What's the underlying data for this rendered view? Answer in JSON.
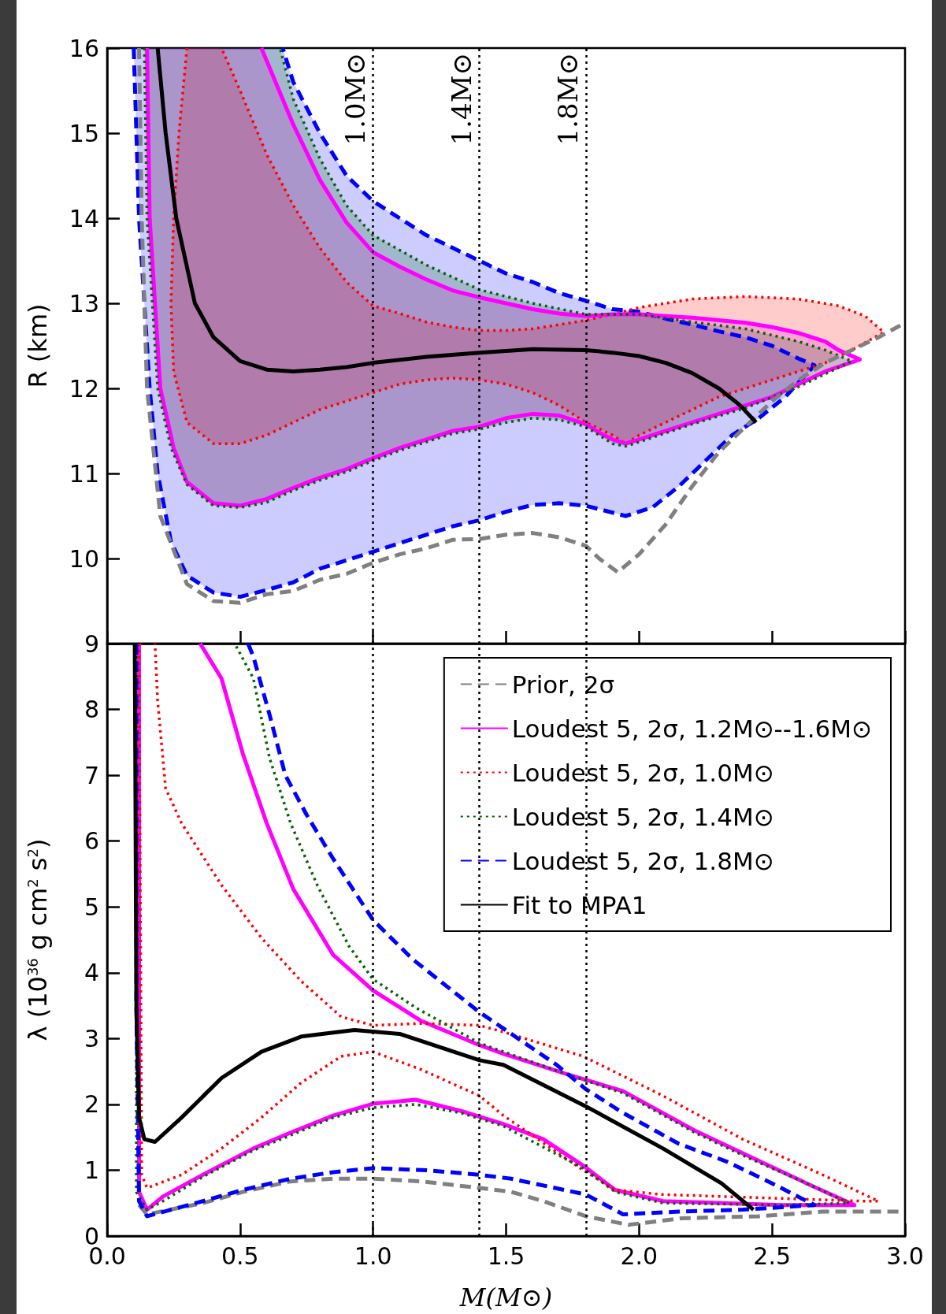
{
  "chart_data": [
    {
      "type": "line",
      "ylabel": "R (km)",
      "xlim": [
        0,
        3
      ],
      "xticks": [
        {
          "value": 0,
          "label": null
        },
        {
          "value": 0.5,
          "label": null
        },
        {
          "value": 1,
          "label": null
        },
        {
          "value": 1.5,
          "label": null
        },
        {
          "value": 2,
          "label": null
        },
        {
          "value": 2.5,
          "label": null
        },
        {
          "value": 3,
          "label": null
        }
      ],
      "ylim": [
        9,
        16
      ],
      "yticks": [
        {
          "value": 9,
          "label": null
        },
        10,
        11,
        12,
        13,
        14,
        15,
        16
      ],
      "tick_labels": "y",
      "ref_lines": [
        {
          "axis": "x",
          "value": 1.0,
          "label": "1.0M⊙",
          "color": "#000000",
          "line_style": "dotted"
        },
        {
          "axis": "x",
          "value": 1.4,
          "label": "1.4M⊙",
          "color": "#000000",
          "line_style": "dotted"
        },
        {
          "axis": "x",
          "value": 1.8,
          "label": "1.8M⊙",
          "color": "#000000",
          "line_style": "dotted"
        }
      ],
      "series": [
        {
          "type": "area",
          "color": "#0000ff",
          "line_style": "dashed",
          "x": [
            0.1,
            0.11,
            0.12,
            0.14,
            0.16,
            0.19,
            0.24,
            0.3,
            0.4,
            0.5,
            0.6,
            0.7,
            0.8,
            0.9,
            1.0,
            1.1,
            1.2,
            1.3,
            1.4,
            1.5,
            1.6,
            1.7,
            1.8,
            1.95,
            2.05,
            2.15,
            2.25,
            2.35,
            2.45,
            2.55,
            2.66,
            2.6,
            2.5,
            2.4,
            2.3,
            2.2,
            2.1,
            2.0,
            1.9,
            1.8,
            1.7,
            1.6,
            1.5,
            1.4,
            1.3,
            1.2,
            1.1,
            1.0,
            0.9,
            0.8,
            0.7,
            0.66
          ],
          "values": [
            16,
            15,
            14,
            13,
            12,
            11,
            10.2,
            9.8,
            9.6,
            9.55,
            9.63,
            9.72,
            9.88,
            9.98,
            10.08,
            10.18,
            10.28,
            10.38,
            10.45,
            10.55,
            10.63,
            10.65,
            10.62,
            10.5,
            10.6,
            10.85,
            11.15,
            11.45,
            11.65,
            11.9,
            12.27,
            12.35,
            12.5,
            12.6,
            12.67,
            12.75,
            12.82,
            12.9,
            12.93,
            13.03,
            13.12,
            13.25,
            13.35,
            13.5,
            13.65,
            13.8,
            14.0,
            14.2,
            14.5,
            15.0,
            15.6,
            16
          ]
        },
        {
          "type": "area",
          "color": "#ff0000",
          "line_style": "dotted",
          "x": [
            0.3,
            0.27,
            0.25,
            0.24,
            0.25,
            0.3,
            0.4,
            0.5,
            0.6,
            0.7,
            0.8,
            0.9,
            1.0,
            1.1,
            1.2,
            1.3,
            1.4,
            1.5,
            1.6,
            1.7,
            1.8,
            1.9,
            1.95,
            2.0,
            2.1,
            2.2,
            2.3,
            2.4,
            2.5,
            2.6,
            2.7,
            2.8,
            2.92,
            2.85,
            2.75,
            2.6,
            2.4,
            2.2,
            2.0,
            1.9,
            1.8,
            1.7,
            1.6,
            1.5,
            1.4,
            1.3,
            1.2,
            1.1,
            1.0,
            0.9,
            0.8,
            0.7,
            0.6,
            0.5,
            0.43
          ],
          "values": [
            16,
            15,
            14,
            13,
            12.2,
            11.6,
            11.35,
            11.35,
            11.45,
            11.6,
            11.75,
            11.85,
            11.95,
            12.05,
            12.1,
            12.12,
            12.1,
            12.05,
            11.95,
            11.8,
            11.6,
            11.45,
            11.35,
            11.45,
            11.6,
            11.75,
            11.9,
            12.0,
            12.1,
            12.2,
            12.3,
            12.45,
            12.66,
            12.85,
            12.97,
            13.05,
            13.08,
            13.05,
            12.95,
            12.87,
            12.8,
            12.75,
            12.7,
            12.68,
            12.68,
            12.72,
            12.78,
            12.88,
            12.97,
            13.25,
            13.65,
            14.15,
            14.75,
            15.5,
            16
          ]
        },
        {
          "type": "area",
          "color": "#ff00ff",
          "line_style": "solid",
          "x": [
            0.15,
            0.16,
            0.18,
            0.2,
            0.25,
            0.3,
            0.4,
            0.5,
            0.6,
            0.7,
            0.8,
            0.9,
            1.0,
            1.1,
            1.2,
            1.3,
            1.4,
            1.5,
            1.6,
            1.7,
            1.8,
            1.85,
            1.9,
            1.95,
            2.0,
            2.1,
            2.2,
            2.3,
            2.4,
            2.5,
            2.6,
            2.7,
            2.83,
            2.75,
            2.7,
            2.6,
            2.5,
            2.4,
            2.3,
            2.2,
            2.1,
            2.0,
            1.9,
            1.8,
            1.7,
            1.6,
            1.5,
            1.4,
            1.3,
            1.2,
            1.1,
            1.0,
            0.9,
            0.8,
            0.7,
            0.6,
            0.58
          ],
          "values": [
            16,
            14,
            13,
            12,
            11.3,
            10.9,
            10.65,
            10.62,
            10.7,
            10.83,
            10.95,
            11.05,
            11.18,
            11.3,
            11.4,
            11.5,
            11.55,
            11.65,
            11.7,
            11.68,
            11.58,
            11.48,
            11.4,
            11.35,
            11.4,
            11.5,
            11.6,
            11.7,
            11.8,
            11.9,
            12.05,
            12.2,
            12.34,
            12.45,
            12.55,
            12.65,
            12.72,
            12.77,
            12.8,
            12.83,
            12.85,
            12.87,
            12.87,
            12.85,
            12.88,
            12.93,
            13.0,
            13.07,
            13.15,
            13.28,
            13.43,
            13.6,
            13.95,
            14.45,
            15.1,
            15.85,
            16
          ]
        },
        {
          "type": "area",
          "color": "#006400",
          "line_style": "dotted",
          "x": [
            0.14,
            0.15,
            0.17,
            0.19,
            0.24,
            0.3,
            0.4,
            0.5,
            0.6,
            0.7,
            0.8,
            0.9,
            1.0,
            1.1,
            1.2,
            1.3,
            1.4,
            1.5,
            1.6,
            1.7,
            1.8,
            1.9,
            1.95,
            2.0,
            2.2,
            2.4,
            2.6,
            2.8,
            2.7,
            2.6,
            2.4,
            2.2,
            2.0,
            1.8,
            1.6,
            1.4,
            1.2,
            1.0,
            0.9,
            0.8,
            0.7,
            0.65
          ],
          "values": [
            16,
            14,
            13,
            12,
            11.3,
            10.87,
            10.62,
            10.6,
            10.66,
            10.8,
            10.92,
            11.02,
            11.15,
            11.27,
            11.37,
            11.47,
            11.52,
            11.6,
            11.65,
            11.63,
            11.55,
            11.35,
            11.32,
            11.37,
            11.58,
            11.77,
            12.02,
            12.32,
            12.45,
            12.55,
            12.7,
            12.78,
            12.87,
            12.87,
            13.0,
            13.16,
            13.45,
            13.8,
            14.15,
            14.7,
            15.4,
            16
          ]
        },
        {
          "type": "line",
          "color": "#808080",
          "line_style": "dashed",
          "x": [
            0.12,
            0.13,
            0.15,
            0.2,
            0.3,
            0.4,
            0.5,
            0.6,
            0.7,
            0.8,
            0.9,
            1.0,
            1.1,
            1.2,
            1.3,
            1.4,
            1.5,
            1.6,
            1.7,
            1.8,
            1.85,
            1.92,
            2.0,
            2.1,
            2.2,
            2.3,
            2.4,
            2.5,
            2.6,
            2.7,
            2.8,
            2.9,
            3.0
          ],
          "values": [
            16,
            14,
            12,
            10.5,
            9.7,
            9.5,
            9.48,
            9.58,
            9.62,
            9.75,
            9.82,
            9.95,
            10.05,
            10.12,
            10.22,
            10.23,
            10.28,
            10.3,
            10.25,
            10.15,
            10.0,
            9.84,
            10.05,
            10.4,
            10.85,
            11.25,
            11.55,
            11.85,
            12.1,
            12.3,
            12.45,
            12.6,
            12.77
          ]
        },
        {
          "type": "line",
          "color": "#000000",
          "line_style": "solid",
          "x": [
            0.19,
            0.22,
            0.26,
            0.33,
            0.4,
            0.5,
            0.6,
            0.7,
            0.8,
            0.9,
            1.0,
            1.2,
            1.4,
            1.6,
            1.8,
            1.9,
            2.0,
            2.1,
            2.2,
            2.3,
            2.38,
            2.44
          ],
          "values": [
            16,
            15,
            14,
            13,
            12.6,
            12.32,
            12.22,
            12.2,
            12.22,
            12.25,
            12.3,
            12.37,
            12.42,
            12.46,
            12.45,
            12.42,
            12.38,
            12.3,
            12.18,
            12.0,
            11.8,
            11.6
          ]
        }
      ]
    },
    {
      "type": "line",
      "xlabel": "M(M⊙)",
      "ylabel": "λ (10$^{36}$ g cm$^{2}$ s$^{2}$)",
      "xlim": [
        0,
        3
      ],
      "xticks": [
        {
          "value": 0,
          "label": "0.0"
        },
        {
          "value": 0.5,
          "label": "0.5"
        },
        {
          "value": 1,
          "label": "1.0"
        },
        {
          "value": 1.5,
          "label": "1.5"
        },
        {
          "value": 2,
          "label": "2.0"
        },
        {
          "value": 2.5,
          "label": "2.5"
        },
        {
          "value": 3,
          "label": "3.0"
        }
      ],
      "ylim": [
        0,
        9
      ],
      "yticks": [
        0,
        1,
        2,
        3,
        4,
        5,
        6,
        7,
        8,
        9
      ],
      "legend": "top right",
      "ref_lines": [
        {
          "axis": "x",
          "value": 1.0,
          "color": "#000000",
          "line_style": "dotted"
        },
        {
          "axis": "x",
          "value": 1.4,
          "color": "#000000",
          "line_style": "dotted"
        },
        {
          "axis": "x",
          "value": 1.8,
          "color": "#000000",
          "line_style": "dotted"
        }
      ],
      "series": [
        {
          "name": "Prior, 2σ",
          "color": "#808080",
          "line_style": "dashed",
          "x": [
            0.12,
            0.15,
            0.36,
            0.51,
            0.69,
            0.85,
            1.0,
            1.18,
            1.4,
            1.52,
            1.64,
            1.8,
            1.96,
            2.16,
            2.45,
            2.69,
            2.99
          ],
          "values": [
            0.47,
            0.33,
            0.5,
            0.67,
            0.83,
            0.87,
            0.87,
            0.83,
            0.73,
            0.67,
            0.53,
            0.3,
            0.17,
            0.27,
            0.3,
            0.37,
            0.37
          ]
        },
        {
          "name": "Loudest 5, 2σ, 1.2M⊙--1.6M⊙",
          "color": "#ff00ff",
          "line_style": "solid",
          "x": [
            0.12,
            0.12,
            0.12,
            0.15,
            0.21,
            0.36,
            0.55,
            0.69,
            0.85,
            1.0,
            1.16,
            1.33,
            1.49,
            1.64,
            1.79,
            1.91,
            2.09,
            2.54,
            2.81,
            2.63,
            2.42,
            2.21,
            1.94,
            1.72,
            1.49,
            1.4,
            1.18,
            1.0,
            0.85,
            0.7,
            0.6,
            0.51,
            0.43,
            0.35
          ],
          "values": [
            9,
            1.47,
            0.67,
            0.4,
            0.6,
            0.93,
            1.33,
            1.57,
            1.83,
            2.01,
            2.07,
            1.9,
            1.7,
            1.47,
            1.07,
            0.7,
            0.53,
            0.47,
            0.47,
            0.8,
            1.2,
            1.6,
            2.2,
            2.47,
            2.77,
            2.9,
            3.27,
            3.73,
            4.27,
            5.27,
            6.27,
            7.33,
            8.47,
            9
          ]
        },
        {
          "name": "Loudest 5, 2σ, 1.0M⊙",
          "color": "#ff0000",
          "line_style": "dotted",
          "x": [
            0.12,
            0.13,
            0.15,
            0.28,
            0.43,
            0.58,
            0.73,
            0.88,
            1.0,
            1.18,
            1.4,
            1.49,
            1.79,
            1.91,
            2.09,
            2.54,
            2.84,
            2.9,
            2.69,
            2.39,
            2.09,
            1.79,
            1.49,
            1.4,
            1.18,
            1.0,
            0.88,
            0.73,
            0.58,
            0.43,
            0.28,
            0.22,
            0.19,
            0.18
          ],
          "values": [
            9,
            0.93,
            0.73,
            0.93,
            1.33,
            1.8,
            2.33,
            2.73,
            2.8,
            2.53,
            2.13,
            1.83,
            1.0,
            0.7,
            0.63,
            0.57,
            0.53,
            0.53,
            0.93,
            1.47,
            2.13,
            2.73,
            3.1,
            3.2,
            3.23,
            3.2,
            3.33,
            3.87,
            4.53,
            5.33,
            6.27,
            6.8,
            8.13,
            9
          ]
        },
        {
          "name": "Loudest 5, 2σ, 1.4M⊙",
          "color": "#006400",
          "line_style": "dotted",
          "x": [
            0.11,
            0.11,
            0.15,
            0.21,
            0.36,
            0.55,
            0.69,
            0.85,
            1.0,
            1.16,
            1.33,
            1.49,
            1.79,
            1.91,
            2.09,
            2.54,
            2.79,
            2.63,
            2.42,
            2.21,
            1.94,
            1.72,
            1.49,
            1.4,
            1.16,
            1.0,
            0.91,
            0.79,
            0.69,
            0.61,
            0.55,
            0.48
          ],
          "values": [
            9,
            0.67,
            0.4,
            0.53,
            0.9,
            1.3,
            1.53,
            1.8,
            1.95,
            2.0,
            1.87,
            1.67,
            1.03,
            0.67,
            0.5,
            0.47,
            0.5,
            0.8,
            1.17,
            1.57,
            2.17,
            2.47,
            2.8,
            2.93,
            3.47,
            3.9,
            4.4,
            5.33,
            6.27,
            7.27,
            8.47,
            9
          ]
        },
        {
          "name": "Loudest 5, 2σ, 1.8M⊙",
          "color": "#0000ff",
          "line_style": "dashed",
          "x": [
            0.11,
            0.11,
            0.12,
            0.15,
            0.36,
            0.51,
            0.69,
            0.85,
            1.0,
            1.2,
            1.4,
            1.52,
            1.8,
            1.94,
            2.15,
            2.39,
            2.66,
            2.5,
            2.33,
            2.15,
            1.94,
            1.8,
            1.69,
            1.52,
            1.4,
            1.15,
            1.0,
            0.85,
            0.75,
            0.67,
            0.61,
            0.55,
            0.53
          ],
          "values": [
            9,
            3.5,
            0.53,
            0.3,
            0.53,
            0.7,
            0.87,
            0.97,
            1.03,
            1.0,
            0.93,
            0.87,
            0.63,
            0.33,
            0.37,
            0.4,
            0.47,
            0.8,
            1.13,
            1.4,
            1.87,
            2.23,
            2.6,
            3.07,
            3.4,
            4.2,
            4.8,
            5.73,
            6.4,
            7.0,
            7.93,
            8.8,
            9
          ]
        },
        {
          "name": "Fit to MPA1",
          "color": "#000000",
          "line_style": "solid",
          "x": [
            0.104,
            0.11,
            0.12,
            0.14,
            0.18,
            0.28,
            0.43,
            0.58,
            0.73,
            0.93,
            1.1,
            1.4,
            1.49,
            1.8,
            2.09,
            2.31,
            2.43
          ],
          "values": [
            9,
            3.47,
            1.8,
            1.47,
            1.43,
            1.8,
            2.4,
            2.8,
            3.03,
            3.13,
            3.07,
            2.67,
            2.6,
            1.97,
            1.33,
            0.8,
            0.4
          ]
        }
      ]
    }
  ]
}
